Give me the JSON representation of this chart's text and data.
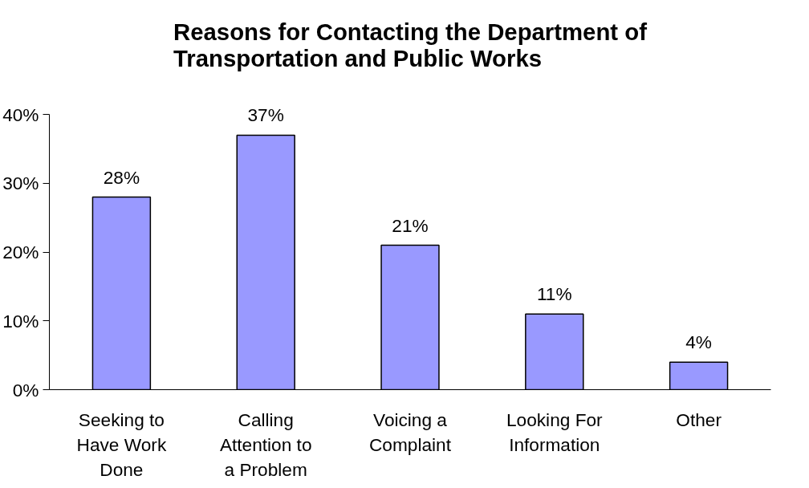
{
  "chart_data": {
    "type": "bar",
    "title": "Reasons for Contacting the Department of Transportation and Public Works",
    "categories": [
      "Seeking to Have Work Done",
      "Calling Attention to a Problem",
      "Voicing a Complaint",
      "Looking For Information",
      "Other"
    ],
    "values": [
      28,
      37,
      21,
      11,
      4
    ],
    "value_labels": [
      "28%",
      "37%",
      "21%",
      "11%",
      "4%"
    ],
    "color": "#9999ff",
    "ylim": [
      0,
      40
    ],
    "yticks": [
      {
        "value": 0,
        "label": "0%"
      },
      {
        "value": 10,
        "label": "10%"
      },
      {
        "value": 20,
        "label": "20%"
      },
      {
        "value": 30,
        "label": "30%"
      },
      {
        "value": 40,
        "label": "40%"
      }
    ],
    "grid": false
  }
}
